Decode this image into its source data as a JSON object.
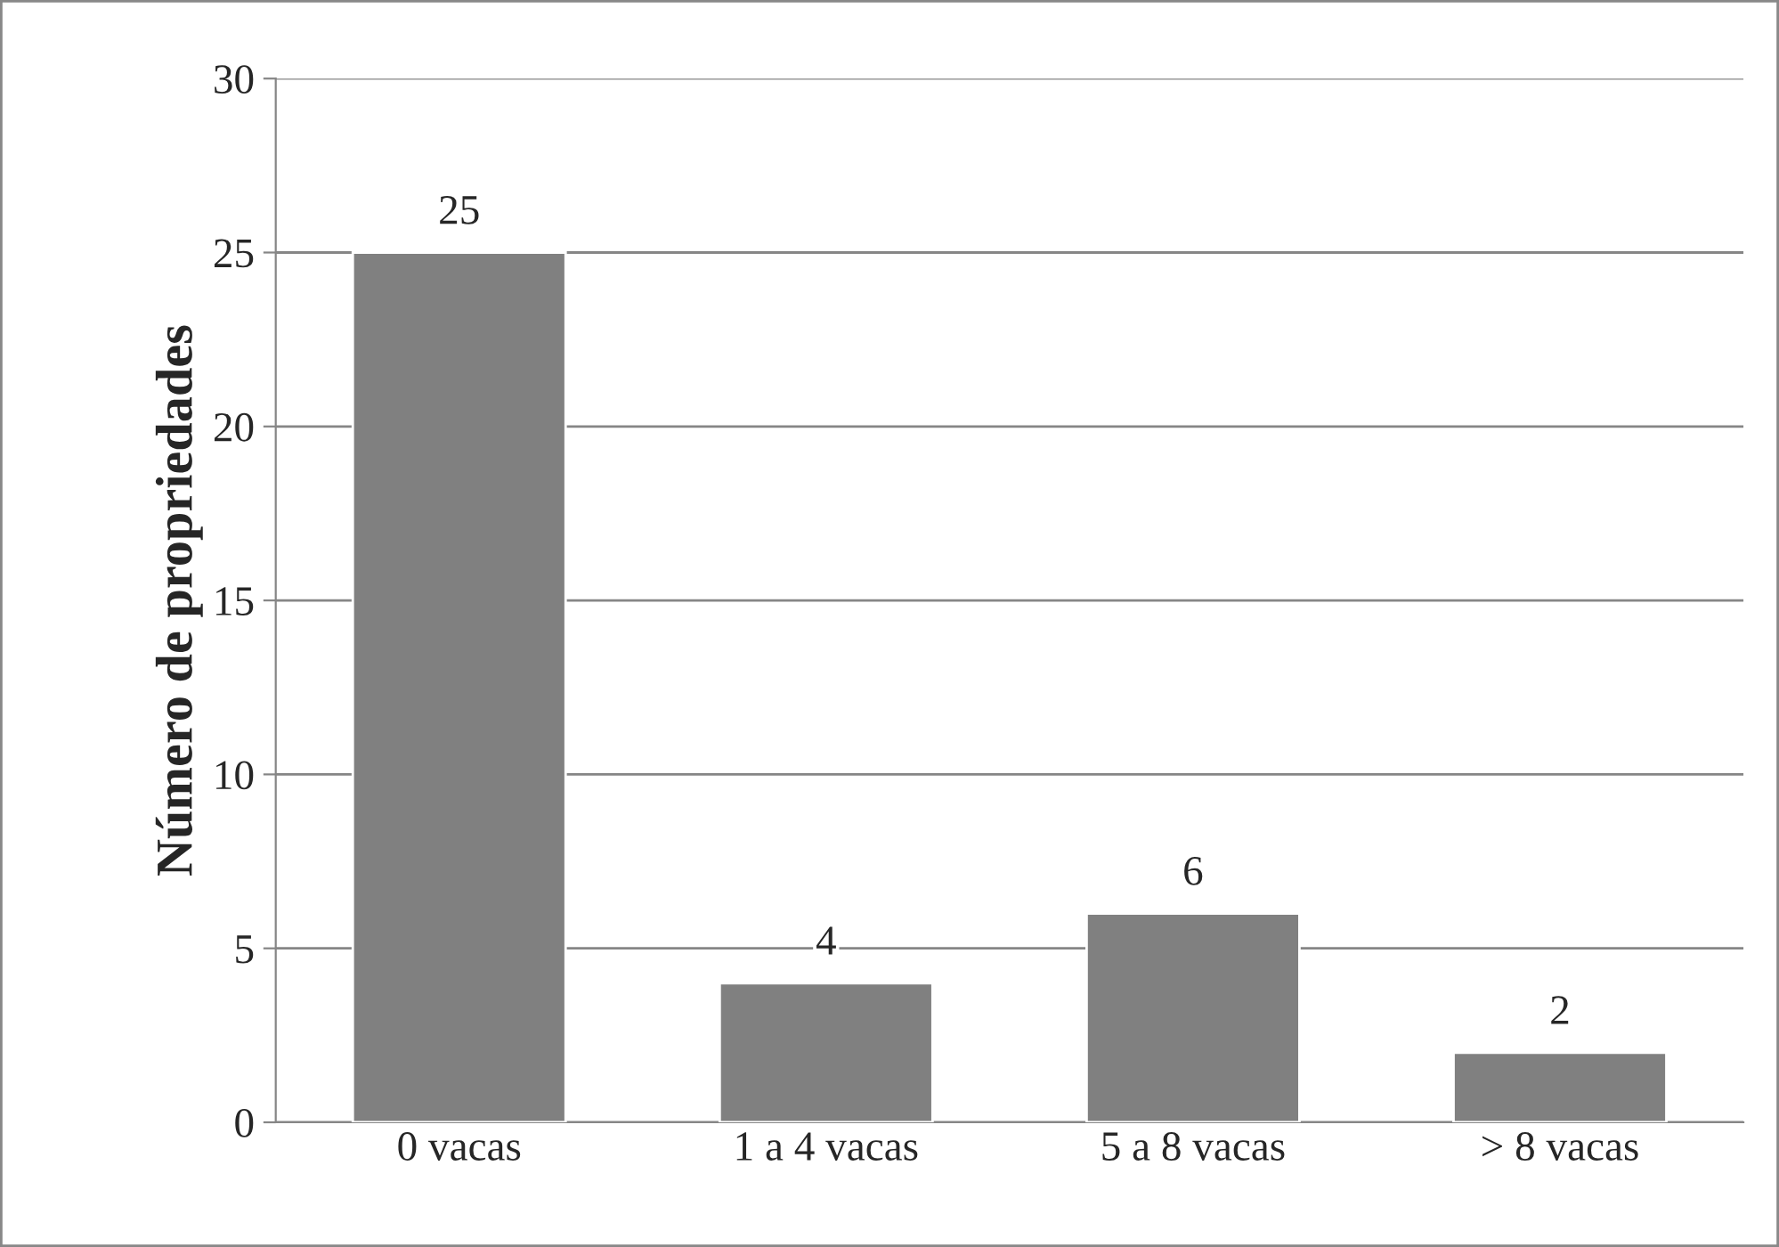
{
  "chart_data": {
    "type": "bar",
    "ylabel": "Número de propriedades",
    "categories": [
      "0 vacas",
      "1 a 4 vacas",
      "5 a 8 vacas",
      "> 8 vacas"
    ],
    "values": [
      25,
      4,
      6,
      2
    ],
    "color": "#808080",
    "ylim": [
      0,
      30
    ],
    "yticks": [
      0,
      5,
      10,
      15,
      20,
      25,
      30
    ],
    "grid": "y",
    "data_labels": true
  }
}
